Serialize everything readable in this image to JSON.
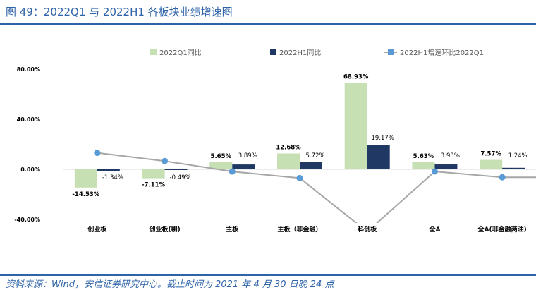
{
  "figure_title": "图 49：2022Q1 与 2022H1 各板块业绩增速图",
  "source_note": "资料来源：Wind，安信证券研究中心。截止时间为 2021 年 4 月 30 日晚 24 点",
  "colors": {
    "q1": "#c6e0b4",
    "h1": "#1f3864",
    "ratio_line": "#a6a6a6",
    "ratio_marker": "#5b9bd5",
    "brand": "#2e63a8"
  },
  "chart_data": {
    "type": "bar",
    "categories": [
      "创业板",
      "创业板(剔)",
      "主板",
      "主板（非金融）",
      "科创板",
      "全A",
      "全A(非金融两油)"
    ],
    "series": [
      {
        "name": "2022Q1同比",
        "values": [
          -14.53,
          -7.11,
          5.65,
          12.68,
          68.93,
          5.63,
          7.57
        ],
        "labels": [
          "-14.53%",
          "-7.11%",
          "5.65%",
          "12.68%",
          "68.93%",
          "5.63%",
          "7.57%"
        ]
      },
      {
        "name": "2022H1同比",
        "values": [
          -1.34,
          -0.49,
          3.89,
          5.72,
          19.17,
          3.93,
          1.24
        ],
        "labels": [
          "-1.34%",
          "-0.49%",
          "3.89%",
          "5.72%",
          "19.17%",
          "3.93%",
          "1.24%"
        ]
      },
      {
        "name": "2022H1增速环比2022Q1",
        "type": "line",
        "values": [
          13.19,
          6.62,
          -1.76,
          -6.96,
          -49.76,
          -1.7,
          -6.33
        ]
      }
    ],
    "ylim": [
      -40,
      80
    ],
    "yticks": [
      "-40.00%",
      "0.00%",
      "40.00%",
      "80.00%"
    ],
    "legend": "top"
  }
}
